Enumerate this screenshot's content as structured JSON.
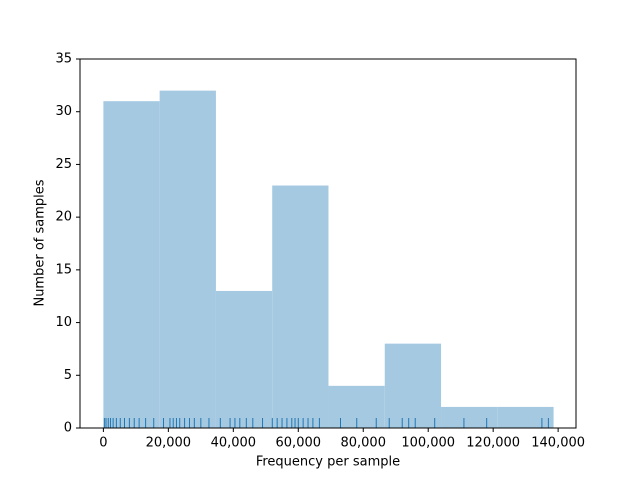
{
  "chart_data": {
    "type": "histogram",
    "xlabel": "Frequency per sample",
    "ylabel": "Number of samples",
    "bins": [
      0,
      17325,
      34650,
      51975,
      69300,
      86625,
      103950,
      121275,
      138600
    ],
    "values": [
      31,
      32,
      13,
      23,
      4,
      8,
      2,
      2
    ],
    "color": "#a6c9e2",
    "rug": [
      300,
      800,
      1500,
      2200,
      3000,
      4000,
      5200,
      6500,
      8000,
      9500,
      11000,
      13000,
      15500,
      18500,
      20500,
      21500,
      22500,
      23500,
      25000,
      26500,
      28000,
      30000,
      32500,
      36000,
      39000,
      40500,
      42000,
      44000,
      46000,
      49000,
      52000,
      53500,
      55000,
      56500,
      58000,
      59000,
      60000,
      61500,
      63000,
      64500,
      66500,
      73000,
      78000,
      84000,
      88000,
      92000,
      94000,
      96000,
      102000,
      111000,
      118000,
      135000,
      137000
    ],
    "rug_color": "#1f77b4",
    "xlim": [
      -7200,
      145500
    ],
    "xticks": [
      0,
      {
        "value": 20000,
        "label": "20,000"
      },
      {
        "value": 40000,
        "label": "40,000"
      },
      {
        "value": 60000,
        "label": "60,000"
      },
      {
        "value": 80000,
        "label": "80,000"
      },
      {
        "value": 100000,
        "label": "100,000"
      },
      {
        "value": 120000,
        "label": "120,000"
      },
      {
        "value": 140000,
        "label": "140,000"
      }
    ],
    "ylim": [
      0,
      35
    ],
    "yticks": [
      0,
      5,
      10,
      15,
      20,
      25,
      30,
      35
    ]
  }
}
